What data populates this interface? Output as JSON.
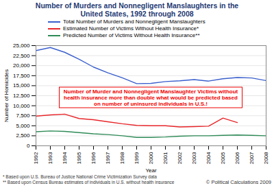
{
  "chart_data": {
    "type": "line",
    "title": "Number of Murders and Nonnegligent Manslaughters in the United States, 1992 through 2008",
    "x_label": "Year",
    "y_label": "Number of Homicides",
    "x": [
      1992,
      1993,
      1994,
      1995,
      1996,
      1997,
      1998,
      1999,
      2000,
      2001,
      2002,
      2003,
      2004,
      2005,
      2006,
      2007,
      2008
    ],
    "xlim": [
      1992,
      2008
    ],
    "xticks": [
      1992,
      1993,
      1994,
      1995,
      1996,
      1997,
      1998,
      1999,
      2000,
      2001,
      2002,
      2003,
      2004,
      2005,
      2006,
      2007,
      2008
    ],
    "ylim": [
      0,
      25000
    ],
    "yticks": [
      0,
      {
        "value": 2500,
        "label": "2,500"
      },
      {
        "value": 5000,
        "label": "5,000"
      },
      {
        "value": 7500,
        "label": "7,500"
      },
      {
        "value": 10000,
        "label": "10,000"
      },
      {
        "value": 12500,
        "label": "12,500"
      },
      {
        "value": 15000,
        "label": "15,000"
      },
      {
        "value": 17500,
        "label": "17,500"
      },
      {
        "value": 20000,
        "label": "20,000"
      },
      {
        "value": 22500,
        "label": "22,500"
      },
      {
        "value": 25000,
        "label": "25,000"
      }
    ],
    "grid": true,
    "legend": "top",
    "series": [
      {
        "name": "Total Number of Murders and Nonnegligent Manslaughters",
        "color": "#3a5fcd",
        "values": [
          23760,
          24530,
          23330,
          21610,
          19650,
          18210,
          16970,
          15520,
          15590,
          16040,
          16230,
          16530,
          16150,
          16740,
          17030,
          16930,
          16270
        ]
      },
      {
        "name": "Estimated Number of Victims Without Health Insurance*",
        "color": "#e8262a",
        "values": [
          7400,
          7700,
          7900,
          6800,
          6500,
          6000,
          5500,
          5100,
          5000,
          5000,
          4700,
          4800,
          4900,
          6900,
          5800,
          null,
          null
        ]
      },
      {
        "name": "Predicted Number of Victims Without Health Insurance**",
        "color": "#2e8b57",
        "values": [
          3500,
          3700,
          3600,
          3300,
          3000,
          2800,
          2500,
          2100,
          2100,
          2200,
          2400,
          2500,
          2500,
          2600,
          2700,
          2600,
          2500
        ]
      }
    ],
    "annotation": "Number of Murder and Nonnegligent Manslaughter Victims without health insurance more than double what would be predicted based on number of uninsured individuals in U.S.!",
    "footnotes": [
      "* Based upon U.S. Bureau of Justice National Crime Victimization Survey data",
      "** Based upon Census Bureau estimates of individuals in U.S. without health insurance"
    ],
    "credit": "© Political Calculations 2009"
  }
}
